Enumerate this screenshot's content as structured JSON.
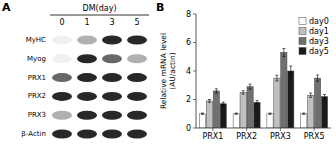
{
  "chart_data": [
    {
      "type": "heatmap",
      "title": "DM(day)",
      "annotations": [
        "A"
      ],
      "x": [
        "0",
        "1",
        "3",
        "5"
      ],
      "y": [
        "MyHC",
        "Myog",
        "PRX1",
        "PRX2",
        "PRX3",
        "β-Actin"
      ],
      "values": [
        [
          0,
          1,
          3,
          3
        ],
        [
          0,
          3,
          2,
          1
        ],
        [
          2,
          3,
          3,
          3
        ],
        [
          3,
          3,
          3,
          3
        ],
        [
          1,
          3,
          3,
          3
        ],
        [
          3,
          3,
          3,
          3
        ]
      ],
      "colors": [
        "#f0f0f0",
        "#b0b0b0",
        "#686868",
        "#282828"
      ]
    },
    {
      "type": "bar",
      "annotations": [
        "B"
      ],
      "categories": [
        "PRX1",
        "PRX2",
        "PRX3",
        "PRX5"
      ],
      "series": [
        {
          "name": "day0",
          "color": "#ffffff",
          "values": [
            1.0,
            1.0,
            1.0,
            1.0
          ],
          "errors": [
            0.05,
            0.05,
            0.05,
            0.05
          ]
        },
        {
          "name": "day1",
          "color": "#c0c0c0",
          "values": [
            1.9,
            2.5,
            3.5,
            2.3
          ],
          "errors": [
            0.1,
            0.12,
            0.2,
            0.15
          ]
        },
        {
          "name": "day3",
          "color": "#707070",
          "values": [
            2.6,
            2.9,
            5.3,
            3.5
          ],
          "errors": [
            0.15,
            0.18,
            0.28,
            0.22
          ]
        },
        {
          "name": "day5",
          "color": "#1a1a1a",
          "values": [
            1.7,
            1.8,
            4.0,
            2.2
          ],
          "errors": [
            0.12,
            0.12,
            0.35,
            0.15
          ]
        }
      ],
      "ylabel": "Relative mRNA level\n(AU/actin)",
      "ylim": [
        0,
        8
      ],
      "yticks": [
        0,
        2,
        4,
        6,
        8
      ],
      "grid": false,
      "legend": "upper right"
    }
  ]
}
